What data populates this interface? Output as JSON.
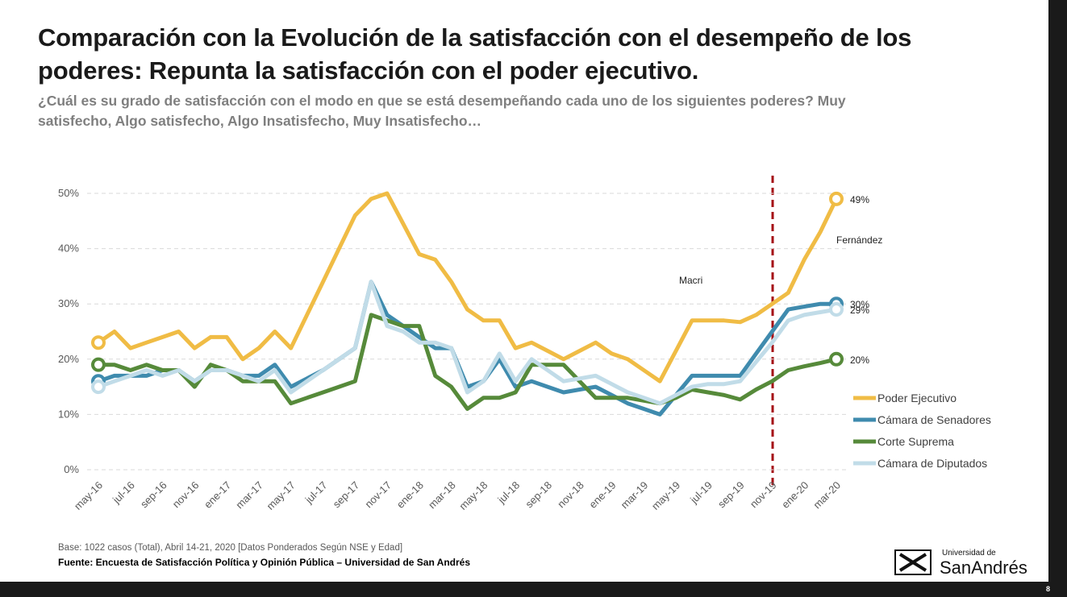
{
  "chart_data": {
    "type": "line",
    "title": "Comparación con la Evolución de la satisfacción con el desempeño de los poderes: Repunta la satisfacción con el poder ejecutivo.",
    "subtitle": "¿Cuál es su grado de satisfacción con el modo en que se está desempeñando cada uno de los siguientes poderes? Muy satisfecho, Algo satisfecho, Algo Insatisfecho, Muy Insatisfecho…",
    "categories": [
      "may-16",
      null,
      "jul-16",
      null,
      "sep-16",
      null,
      "nov-16",
      null,
      "ene-17",
      null,
      "mar-17",
      null,
      "may-17",
      null,
      "jul-17",
      null,
      "sep-17",
      null,
      "nov-17",
      null,
      "ene-18",
      null,
      "mar-18",
      null,
      "may-18",
      null,
      "jul-18",
      null,
      "sep-18",
      null,
      "nov-18",
      null,
      "ene-19",
      null,
      "mar-19",
      null,
      "may-19",
      null,
      "jul-19",
      null,
      "sep-19",
      null,
      "nov-19",
      null,
      "ene-20",
      null,
      "mar-20"
    ],
    "series": [
      {
        "name": "Poder Ejecutivo",
        "color": "#f0bc45",
        "values": [
          23,
          25,
          22,
          23,
          24,
          25,
          22,
          24,
          24,
          20,
          22,
          25,
          22,
          28,
          34,
          40,
          46,
          49,
          50,
          44.5,
          39,
          38,
          34,
          29,
          27,
          27,
          22,
          23,
          21.5,
          20,
          21.5,
          23,
          21,
          20,
          18,
          16,
          21.5,
          27,
          27,
          27,
          26.7,
          28,
          30,
          32,
          38,
          43,
          49
        ],
        "value_labels": [
          null,
          null,
          null,
          null,
          null,
          null,
          null,
          null,
          null,
          null,
          null,
          null,
          null,
          null,
          null,
          null,
          null,
          null,
          null,
          null,
          null,
          null,
          null,
          null,
          null,
          null,
          null,
          null,
          null,
          null,
          null,
          null,
          null,
          null,
          null,
          null,
          null,
          null,
          null,
          null,
          null,
          null,
          null,
          null,
          null,
          null,
          "49%"
        ]
      },
      {
        "name": "Cámara de Senadores",
        "color": "#3f8bae",
        "values": [
          16,
          17,
          17,
          17,
          18,
          18,
          16,
          18,
          18,
          17,
          17,
          19,
          15,
          16.5,
          18,
          20,
          22,
          34,
          28,
          26,
          24,
          22,
          22,
          15,
          16,
          20,
          15,
          16,
          15,
          14,
          14.5,
          15,
          13.5,
          12,
          11,
          10,
          13.5,
          17,
          17,
          17,
          17,
          21,
          25,
          29,
          29.5,
          30,
          30
        ],
        "value_labels": [
          null,
          null,
          null,
          null,
          null,
          null,
          null,
          null,
          null,
          null,
          null,
          null,
          null,
          null,
          null,
          null,
          null,
          null,
          null,
          null,
          null,
          null,
          null,
          null,
          null,
          null,
          null,
          null,
          null,
          null,
          null,
          null,
          null,
          null,
          null,
          null,
          null,
          null,
          null,
          null,
          null,
          null,
          null,
          null,
          null,
          null,
          "30%"
        ]
      },
      {
        "name": "Corte Suprema",
        "color": "#568a3a",
        "values": [
          19,
          19,
          18,
          19,
          18,
          18,
          15,
          19,
          18,
          16,
          16,
          16,
          12,
          13,
          14,
          15,
          16,
          28,
          27,
          26,
          26,
          17,
          15,
          11,
          13,
          13,
          14,
          19,
          19,
          19,
          16,
          13,
          13,
          13,
          12.5,
          12,
          13,
          14.5,
          14,
          13.5,
          12.7,
          14.5,
          16,
          18,
          18.7,
          19.3,
          20
        ],
        "value_labels": [
          null,
          null,
          null,
          null,
          null,
          null,
          null,
          null,
          null,
          null,
          null,
          null,
          null,
          null,
          null,
          null,
          null,
          null,
          null,
          null,
          null,
          null,
          null,
          null,
          null,
          null,
          null,
          null,
          null,
          null,
          null,
          null,
          null,
          null,
          null,
          null,
          null,
          null,
          null,
          null,
          null,
          null,
          null,
          null,
          null,
          null,
          "20%"
        ]
      },
      {
        "name": "Cámara de Diputados",
        "color": "#c1dce8",
        "values": [
          15,
          16,
          17,
          18,
          17,
          18,
          16,
          18,
          18,
          17,
          16,
          18,
          14,
          16,
          18,
          20,
          22,
          34,
          26,
          25,
          23,
          23,
          22,
          14,
          16,
          21,
          16,
          20,
          18,
          16,
          16.5,
          17,
          15.5,
          14,
          13,
          12,
          13.5,
          15,
          15.5,
          15.5,
          16,
          19.5,
          23,
          27,
          28,
          28.5,
          29
        ],
        "value_labels": [
          null,
          null,
          null,
          null,
          null,
          null,
          null,
          null,
          null,
          null,
          null,
          null,
          null,
          null,
          null,
          null,
          null,
          null,
          null,
          null,
          null,
          null,
          null,
          null,
          null,
          null,
          null,
          null,
          null,
          null,
          null,
          null,
          null,
          null,
          null,
          null,
          null,
          null,
          null,
          null,
          null,
          null,
          null,
          null,
          null,
          null,
          "29%"
        ]
      }
    ],
    "ylim": [
      0,
      50
    ],
    "yticks": [
      {
        "value": 0,
        "label": "0%"
      },
      {
        "value": 10,
        "label": "10%"
      },
      {
        "value": 20,
        "label": "20%"
      },
      {
        "value": 30,
        "label": "30%"
      },
      {
        "value": 40,
        "label": "40%"
      },
      {
        "value": 50,
        "label": "50%"
      }
    ],
    "grid": true,
    "legend": "right",
    "annotations": [
      "Macri",
      "Fernández"
    ],
    "footnote": "Base: 1022 casos (Total), Abril 14-21, 2020 [Datos Ponderados Según NSE y Edad]",
    "source": "Fuente: Encuesta de Satisfacción Política y Opinión Pública – Universidad de San Andrés",
    "logo": [
      "Universidad de",
      "SanAndrés"
    ],
    "page_number": "8"
  }
}
